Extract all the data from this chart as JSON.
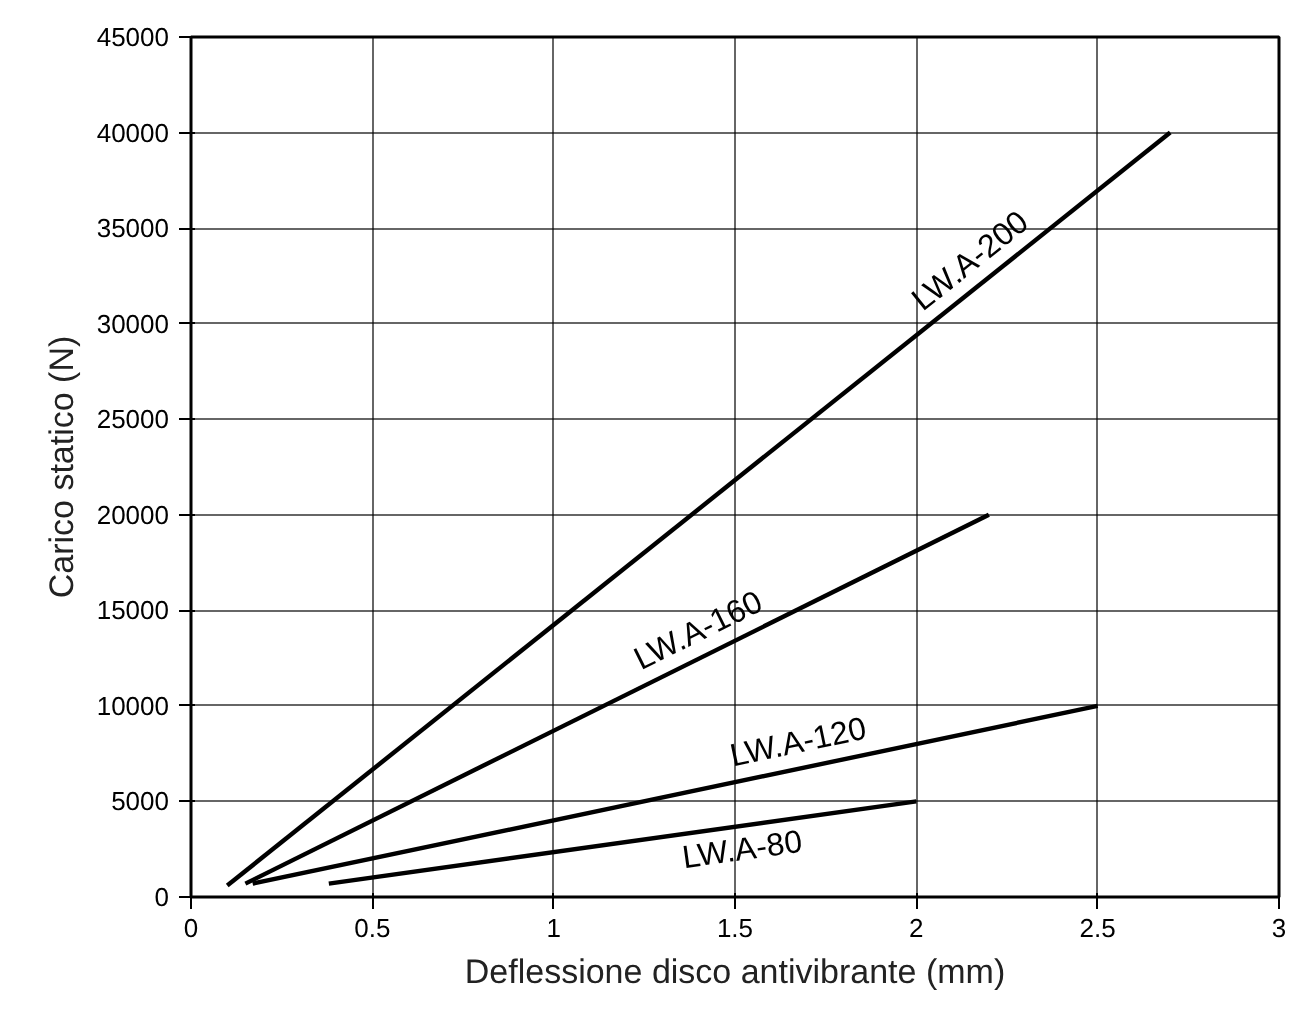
{
  "chart_data": {
    "type": "line",
    "xlabel": "Deflessione disco antivibrante (mm)",
    "ylabel": "Carico statico (N)",
    "xlim": [
      0,
      3
    ],
    "xticks": [
      0,
      0.5,
      1,
      1.5,
      2,
      2.5,
      3
    ],
    "ylim": [
      0,
      45000
    ],
    "yticks": [
      0,
      5000,
      10000,
      15000,
      20000,
      25000,
      30000,
      35000,
      40000,
      45000
    ],
    "grid": true,
    "marker": "none",
    "line_style": "solid",
    "series": [
      {
        "name": "LW.A-200",
        "color": "#000000",
        "x": [
          0.1,
          2.7
        ],
        "values": [
          600,
          40000
        ]
      },
      {
        "name": "LW.A-160",
        "color": "#000000",
        "x": [
          0.15,
          2.2
        ],
        "values": [
          700,
          20000
        ]
      },
      {
        "name": "LW.A-120",
        "color": "#000000",
        "x": [
          0.17,
          2.5
        ],
        "values": [
          700,
          10000
        ]
      },
      {
        "name": "LW.A-80",
        "color": "#000000",
        "x": [
          0.38,
          2.0
        ],
        "values": [
          700,
          5000
        ]
      }
    ]
  }
}
